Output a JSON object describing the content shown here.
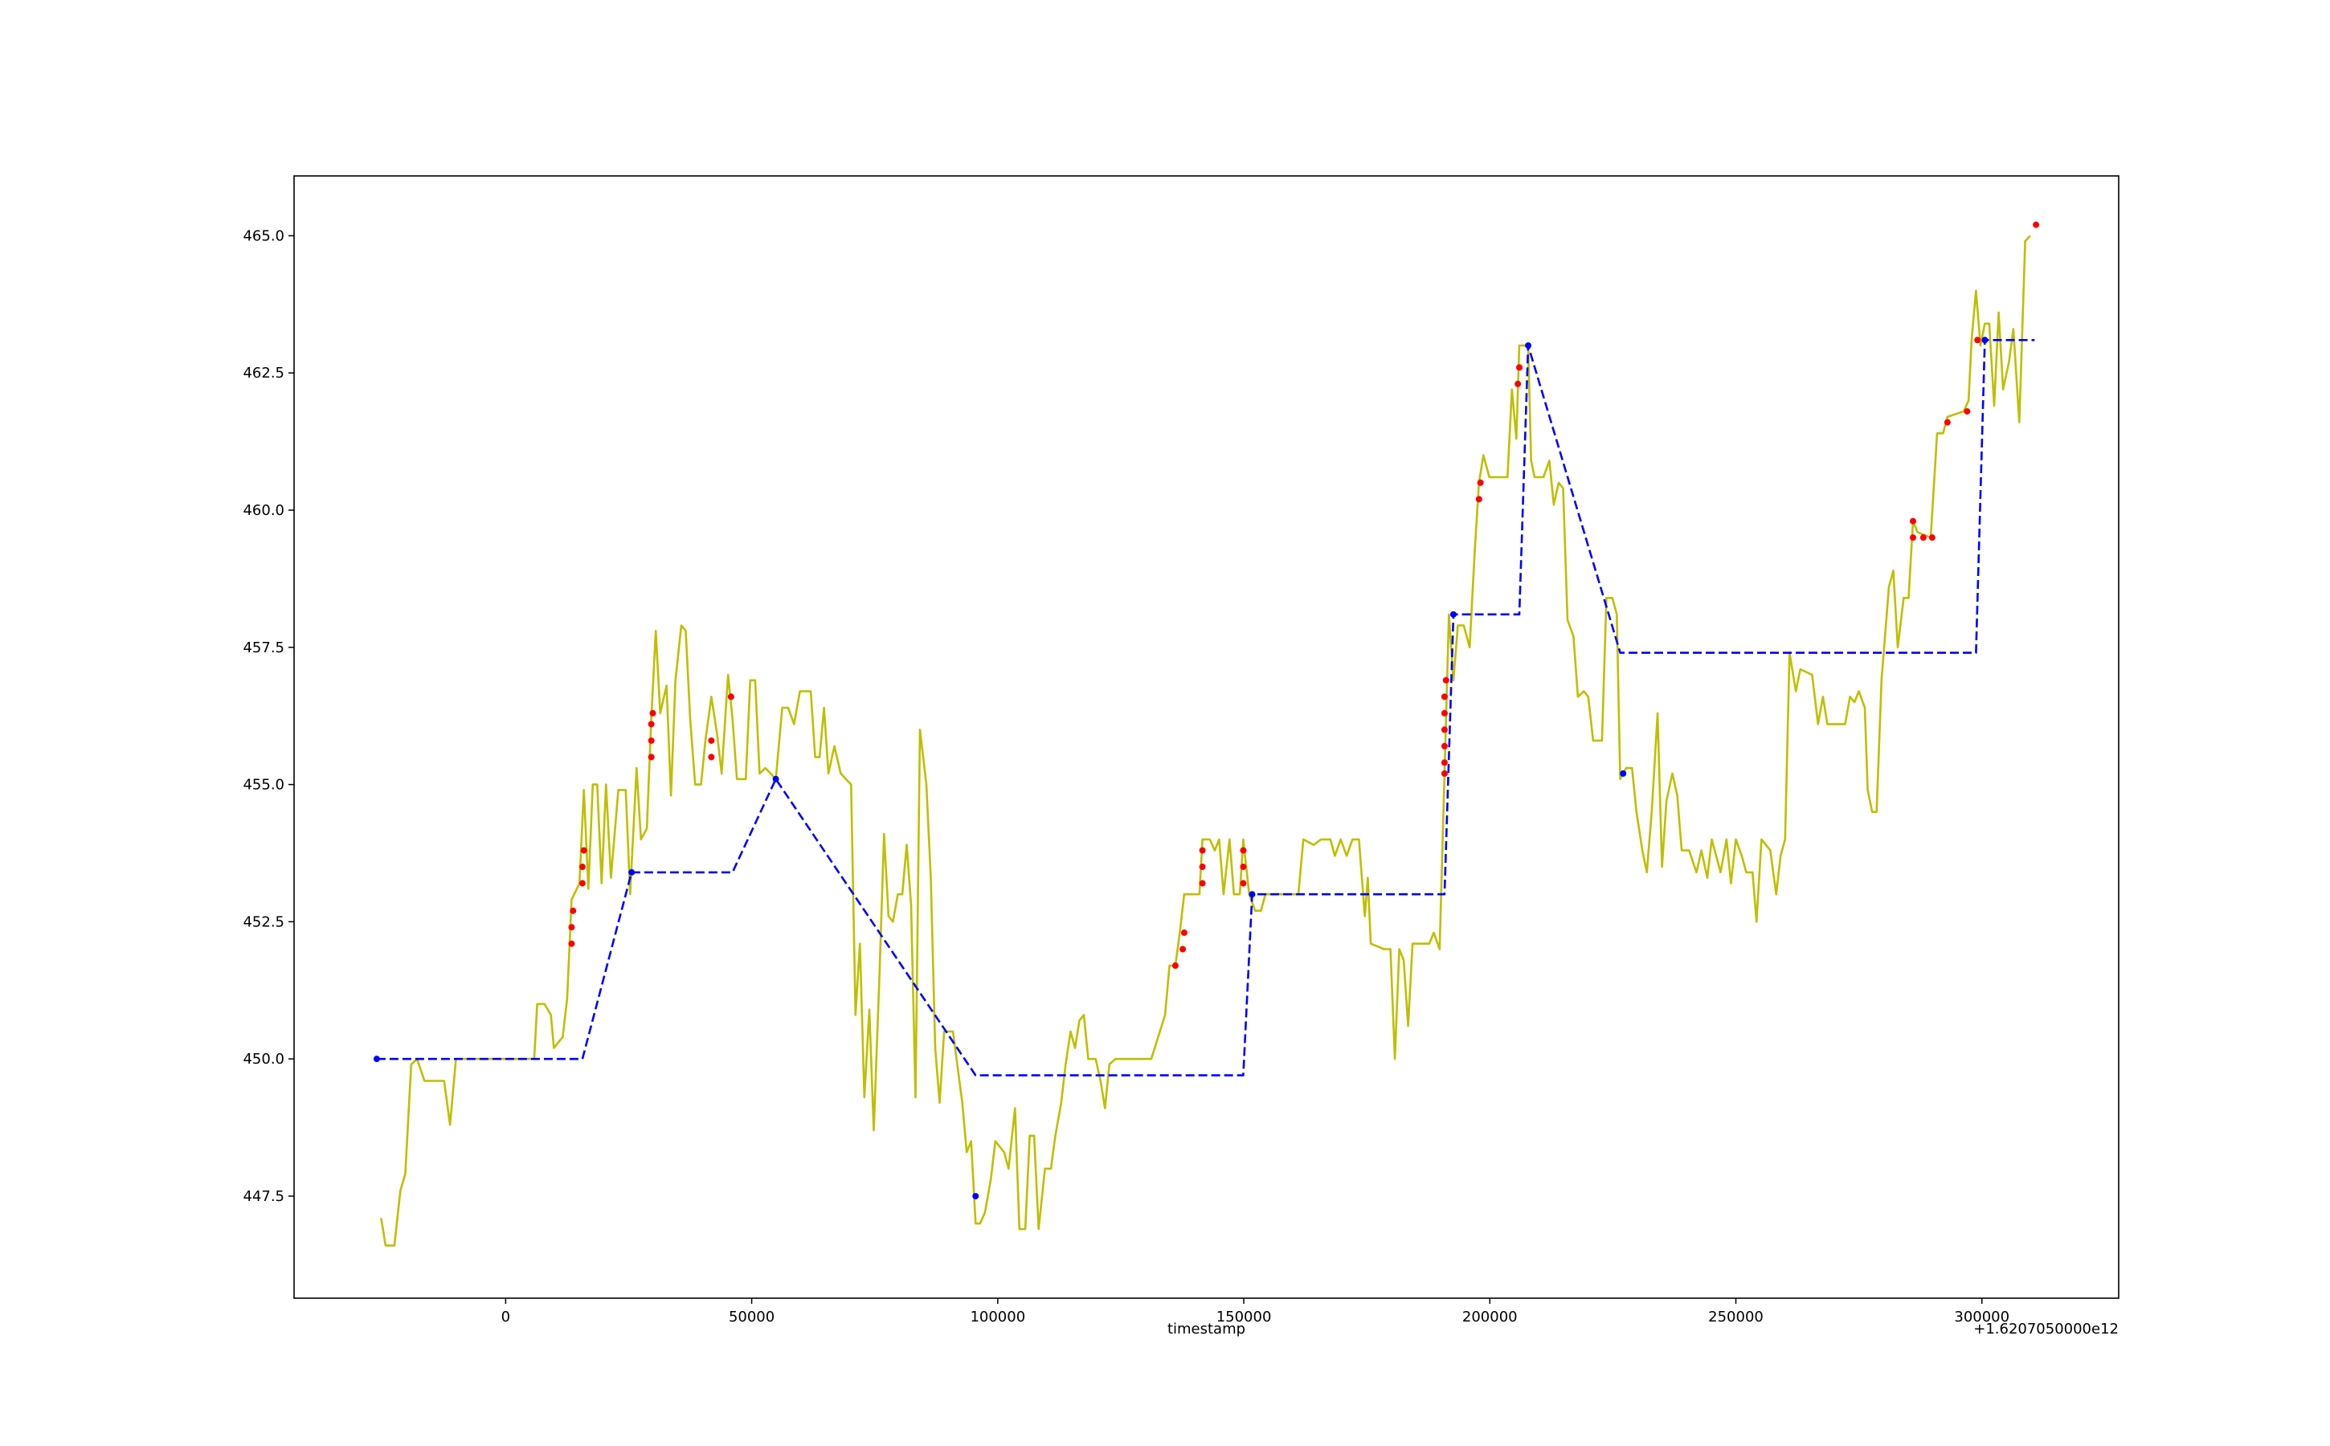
{
  "chart_data": {
    "type": "line",
    "xlabel": "timestamp",
    "x_offset_text": "+1.6207050000e12",
    "xlim": [
      -43000,
      327800
    ],
    "ylim": [
      445.64,
      466.09
    ],
    "xticks": [
      0,
      50000,
      100000,
      150000,
      200000,
      250000,
      300000
    ],
    "yticks": [
      {
        "value": 447.5,
        "label": "447.5"
      },
      {
        "value": 450,
        "label": "450.0"
      },
      {
        "value": 452.5,
        "label": "452.5"
      },
      {
        "value": 455,
        "label": "455.0"
      },
      {
        "value": 457.5,
        "label": "457.5"
      },
      {
        "value": 460,
        "label": "460.0"
      },
      {
        "value": 462.5,
        "label": "462.5"
      },
      {
        "value": 465,
        "label": "465.0"
      }
    ],
    "grid": false,
    "series": [
      {
        "color": "#bfbf00",
        "linestyle": "solid",
        "marker": false,
        "x": [
          -25300,
          -24400,
          -22600,
          -21400,
          -20400,
          -19200,
          -18000,
          -16500,
          -12500,
          -11300,
          -10100,
          5800,
          6400,
          7900,
          9200,
          9800,
          11600,
          12500,
          13400,
          15000,
          15900,
          16800,
          17700,
          18600,
          19500,
          20400,
          21400,
          22900,
          24400,
          25300,
          26600,
          27500,
          28700,
          29600,
          30500,
          31400,
          32700,
          33600,
          34500,
          35700,
          36600,
          37500,
          38500,
          39700,
          40600,
          41800,
          43000,
          43900,
          45200,
          46100,
          47000,
          48800,
          49700,
          50700,
          51600,
          52800,
          54900,
          56200,
          57400,
          58600,
          59800,
          62000,
          62900,
          63800,
          64700,
          65600,
          66800,
          68100,
          70200,
          71100,
          72000,
          72900,
          73900,
          74800,
          76000,
          76900,
          77800,
          78700,
          79700,
          80600,
          81500,
          82400,
          83300,
          84200,
          85500,
          86400,
          87300,
          88200,
          89100,
          90900,
          92800,
          93700,
          94600,
          95500,
          96400,
          97400,
          98600,
          99500,
          101300,
          102200,
          103500,
          104400,
          105600,
          106500,
          107400,
          108300,
          109600,
          110800,
          111700,
          112900,
          113800,
          114800,
          115700,
          116600,
          117500,
          118400,
          119900,
          120900,
          121800,
          122700,
          123900,
          129100,
          130300,
          131200,
          134000,
          134900,
          136100,
          137000,
          137900,
          141000,
          141600,
          143100,
          144100,
          145000,
          145900,
          147100,
          148000,
          149200,
          149900,
          151100,
          152300,
          153500,
          154400,
          161100,
          162100,
          164200,
          165700,
          167600,
          168500,
          169700,
          170900,
          172100,
          173400,
          174600,
          175200,
          175800,
          178500,
          179800,
          180700,
          181600,
          182500,
          183400,
          184300,
          187700,
          188600,
          189800,
          190800,
          191700,
          192600,
          193500,
          194700,
          195900,
          196900,
          197800,
          198700,
          199900,
          203600,
          204500,
          205400,
          206000,
          207800,
          208400,
          209100,
          210900,
          212100,
          213000,
          214000,
          214900,
          215800,
          217000,
          217900,
          219100,
          220000,
          221000,
          222800,
          223700,
          224900,
          225800,
          226500,
          227700,
          228900,
          229800,
          231000,
          231900,
          232900,
          234100,
          235000,
          235900,
          237100,
          238100,
          239000,
          240500,
          242000,
          243000,
          244200,
          245100,
          246000,
          246900,
          248100,
          249000,
          250000,
          251200,
          252100,
          253400,
          254200,
          255200,
          256100,
          257000,
          258200,
          259100,
          260000,
          260900,
          262200,
          263100,
          265500,
          266700,
          267700,
          268600,
          272200,
          273200,
          274100,
          275000,
          276200,
          276800,
          277700,
          278600,
          279600,
          281100,
          282000,
          282900,
          284100,
          285100,
          286000,
          286900,
          289600,
          290900,
          292100,
          293000,
          296300,
          297300,
          297900,
          298800,
          299700,
          300600,
          301500,
          302500,
          303400,
          304300,
          305500,
          306400,
          307600,
          308800,
          309800
        ],
        "values": [
          447.1,
          446.6,
          446.6,
          447.6,
          447.9,
          449.9,
          450.0,
          449.6,
          449.6,
          448.8,
          450.0,
          450.0,
          451.0,
          451.0,
          450.8,
          450.2,
          450.4,
          451.1,
          452.9,
          453.2,
          454.9,
          453.1,
          455.0,
          455.0,
          453.2,
          455.0,
          453.3,
          454.9,
          454.9,
          453.0,
          455.3,
          454.0,
          454.2,
          456.2,
          457.8,
          456.3,
          456.8,
          454.8,
          456.9,
          457.9,
          457.8,
          456.2,
          455.0,
          455.0,
          455.8,
          456.6,
          455.9,
          455.2,
          457.0,
          456.2,
          455.1,
          455.1,
          456.9,
          456.9,
          455.2,
          455.3,
          455.1,
          456.4,
          456.4,
          456.1,
          456.7,
          456.7,
          455.5,
          455.5,
          456.4,
          455.2,
          455.7,
          455.2,
          455.0,
          450.8,
          452.1,
          449.3,
          450.9,
          448.7,
          451.6,
          454.1,
          452.6,
          452.5,
          453.0,
          453.0,
          453.9,
          452.8,
          449.3,
          456.0,
          455.0,
          453.3,
          450.2,
          449.2,
          450.5,
          450.5,
          449.2,
          448.3,
          448.5,
          447.0,
          447.0,
          447.2,
          447.8,
          448.5,
          448.3,
          448.0,
          449.1,
          446.9,
          446.9,
          448.6,
          448.6,
          446.9,
          448.0,
          448.0,
          448.6,
          449.2,
          449.9,
          450.5,
          450.2,
          450.7,
          450.8,
          450.0,
          450.0,
          449.6,
          449.1,
          449.9,
          450.0,
          450.0,
          450.0,
          450.0,
          450.8,
          451.7,
          451.7,
          452.3,
          453.0,
          453.0,
          454.0,
          454.0,
          453.8,
          454.0,
          453.0,
          454.0,
          453.0,
          453.0,
          454.0,
          453.0,
          452.7,
          452.7,
          453.0,
          453.0,
          454.0,
          453.9,
          454.0,
          454.0,
          453.7,
          454.0,
          453.7,
          454.0,
          454.0,
          452.6,
          453.3,
          452.1,
          452.0,
          452.0,
          450.0,
          452.0,
          451.8,
          450.6,
          452.1,
          452.1,
          452.3,
          452.0,
          455.2,
          458.1,
          456.9,
          457.9,
          457.9,
          457.5,
          459.2,
          460.5,
          461.0,
          460.6,
          460.6,
          462.2,
          461.3,
          463.0,
          463.0,
          460.9,
          460.6,
          460.6,
          460.9,
          460.1,
          460.5,
          460.4,
          458.0,
          457.7,
          456.6,
          456.7,
          456.6,
          455.8,
          455.8,
          458.4,
          458.4,
          458.1,
          455.1,
          455.3,
          455.3,
          454.5,
          453.8,
          453.4,
          454.5,
          456.3,
          453.5,
          454.7,
          455.2,
          454.8,
          453.8,
          453.8,
          453.4,
          453.8,
          453.3,
          454.0,
          453.7,
          453.4,
          454.0,
          453.2,
          454.0,
          453.7,
          453.4,
          453.4,
          452.5,
          454.0,
          453.9,
          453.8,
          453.0,
          453.7,
          454.0,
          457.4,
          456.7,
          457.1,
          457.0,
          456.1,
          456.6,
          456.1,
          456.1,
          456.6,
          456.5,
          456.7,
          456.4,
          454.9,
          454.5,
          454.5,
          456.9,
          458.6,
          458.9,
          457.5,
          458.4,
          458.4,
          459.8,
          459.6,
          459.5,
          461.4,
          461.4,
          461.7,
          461.8,
          462.0,
          463.1,
          464.0,
          463.0,
          463.4,
          463.4,
          461.9,
          463.6,
          462.2,
          462.7,
          463.3,
          461.6,
          464.9,
          465.0
        ]
      },
      {
        "color": "#0000ff",
        "linestyle": "dashed",
        "marker": false,
        "x": [
          -26200,
          15600,
          25600,
          46100,
          54900,
          95500,
          149900,
          151700,
          190800,
          192600,
          206000,
          207800,
          226500,
          298800,
          300600,
          310700
        ],
        "values": [
          450.0,
          450.0,
          453.4,
          453.4,
          455.1,
          449.7,
          449.7,
          453.0,
          453.0,
          458.1,
          458.1,
          463.0,
          457.4,
          457.4,
          463.1,
          463.1
        ]
      },
      {
        "color": "#0000ff",
        "linestyle": "none",
        "marker": true,
        "x": [
          -26200,
          25600,
          54900,
          95500,
          151700,
          192600,
          207800,
          227100,
          300600
        ],
        "values": [
          450.0,
          453.4,
          455.1,
          447.5,
          453.0,
          458.1,
          463.0,
          455.2,
          463.1
        ]
      },
      {
        "color": "#ff0000",
        "linestyle": "none",
        "marker": true,
        "x": [
          13400,
          13400,
          13700,
          15600,
          15600,
          15900,
          29600,
          29600,
          29600,
          29900,
          41800,
          41800,
          45800,
          136100,
          137600,
          137900,
          141600,
          141600,
          141600,
          149900,
          149900,
          149900,
          190800,
          190800,
          190800,
          190800,
          190800,
          190800,
          191100,
          197800,
          198100,
          205700,
          206000,
          286000,
          286000,
          288100,
          289900,
          293000,
          297000,
          299100,
          311000
        ],
        "values": [
          452.1,
          452.4,
          452.7,
          453.2,
          453.5,
          453.8,
          455.5,
          455.8,
          456.1,
          456.3,
          455.5,
          455.8,
          456.6,
          451.7,
          452.0,
          452.3,
          453.2,
          453.5,
          453.8,
          453.2,
          453.5,
          453.8,
          455.2,
          455.4,
          455.7,
          456.0,
          456.3,
          456.6,
          456.9,
          460.2,
          460.5,
          462.3,
          462.6,
          459.8,
          459.5,
          459.5,
          459.5,
          461.6,
          461.8,
          463.1,
          465.2
        ]
      }
    ]
  }
}
